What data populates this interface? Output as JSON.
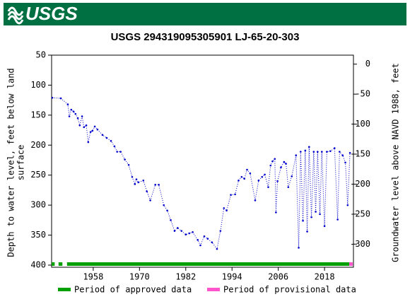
{
  "header": {
    "logo": "USGS"
  },
  "chart_data": {
    "type": "line",
    "title": "USGS 294319095305901 LJ-65-20-303",
    "y_label": [
      "Depth to water level, feet below land",
      "surface"
    ],
    "y2_label": "Groundwater level above NAVD 1988, feet",
    "xlim": [
      1947.2,
      2025.5
    ],
    "xticks": [
      1958,
      1970,
      1982,
      1994,
      2006,
      2018
    ],
    "ylim": [
      50,
      400
    ],
    "yticks": [
      50,
      100,
      150,
      200,
      250,
      300,
      350,
      400
    ],
    "y2lim": [
      15,
      -335
    ],
    "y2ticks": [
      0,
      -50,
      -100,
      -150,
      -200,
      -250,
      -300
    ],
    "series": [
      {
        "color": "#0000cc",
        "x": [
          1947.4,
          1949.6,
          1951.4,
          1951.8,
          1952.3,
          1952.9,
          1953.4,
          1954,
          1954.5,
          1955.1,
          1955.6,
          1956.2,
          1956.7,
          1957.3,
          1957.8,
          1958.4,
          1959.1,
          1960.4,
          1961.5,
          1962.6,
          1963.5,
          1964.2,
          1965.1,
          1966.2,
          1967.2,
          1968.1,
          1968.8,
          1969.2,
          1969.7,
          1971,
          1971.9,
          1972.8,
          1974.1,
          1975,
          1976.3,
          1977.2,
          1978.1,
          1979.1,
          1979.9,
          1980.9,
          1982,
          1982.9,
          1983.8,
          1985.1,
          1985.8,
          1986.8,
          1987.7,
          1988.8,
          1990.1,
          1991,
          1991.9,
          1992.6,
          1993.7,
          1994.8,
          1995.7,
          1996.5,
          1997.2,
          1997.9,
          1998.7,
          2000,
          2000.9,
          2001.8,
          2002.5,
          2003.4,
          2004,
          2004.5,
          2005.1,
          2005.4,
          2005.8,
          2006.7,
          2007.5,
          2008,
          2008.6,
          2009.5,
          2010.6,
          2011.3,
          2011.8,
          2012.4,
          2013,
          2013.5,
          2014,
          2014.6,
          2015.2,
          2015.7,
          2016.2,
          2016.8,
          2017.3,
          2018,
          2018.6,
          2019.5,
          2020.6,
          2021.4,
          2021.9,
          2022.7,
          2023.4,
          2024,
          2024.6
        ],
        "values": [
          121,
          122,
          132,
          152,
          141,
          144,
          148,
          155,
          167,
          152,
          170,
          167,
          195,
          178,
          176,
          169,
          174,
          183,
          188,
          193,
          202,
          211,
          211,
          224,
          233,
          253,
          265,
          257,
          262,
          259,
          277,
          292,
          266,
          266,
          300,
          309,
          325,
          343,
          338,
          343,
          349,
          347,
          345,
          358,
          367,
          352,
          356,
          362,
          373,
          343,
          305,
          309,
          283,
          282,
          259,
          253,
          256,
          241,
          247,
          292,
          259,
          253,
          249,
          270,
          234,
          227,
          223,
          312,
          260,
          237,
          228,
          231,
          270,
          252,
          217,
          371,
          211,
          326,
          209,
          344,
          203,
          320,
          211,
          311,
          211,
          315,
          211,
          335,
          211,
          210,
          205,
          324,
          211,
          217,
          229,
          300,
          213
        ]
      }
    ],
    "periods": [
      {
        "name": "Period of approved data",
        "color": "#00a000",
        "ranges": [
          [
            1947.2,
            1948
          ],
          [
            1949,
            1950
          ],
          [
            1951.2,
            2024.4
          ]
        ]
      },
      {
        "name": "Period of provisional data",
        "color": "#ff55cc",
        "ranges": [
          [
            2024.4,
            2025.3
          ]
        ]
      }
    ]
  }
}
